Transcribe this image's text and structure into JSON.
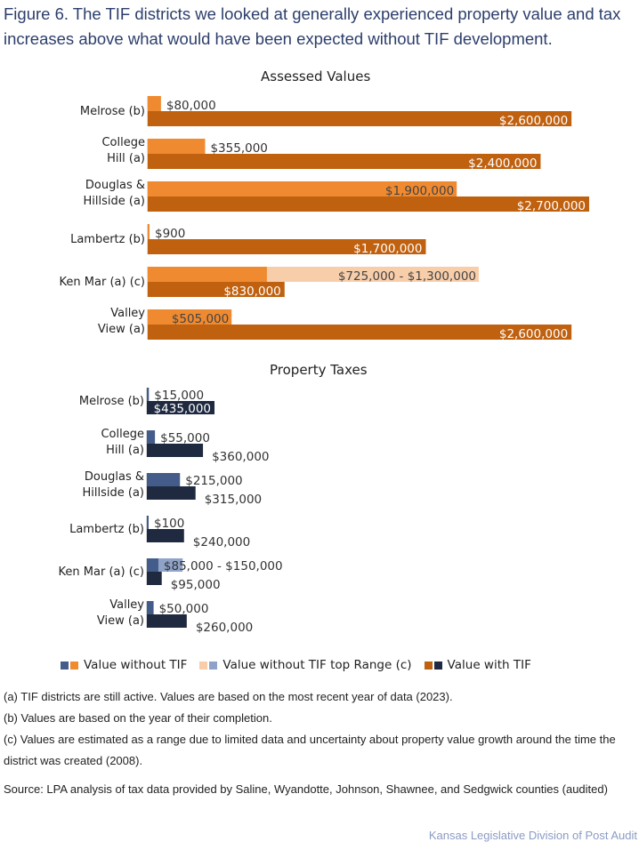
{
  "figure_title": "Figure 6. The TIF districts we looked at generally experienced property value and tax increases above what would have been expected without TIF development.",
  "colors": {
    "assessed_without": "#f08a30",
    "assessed_range": "#f8ceaa",
    "assessed_with": "#c0610f",
    "taxes_without": "#435c8a",
    "taxes_range": "#8fa3c9",
    "taxes_with": "#1f2a40"
  },
  "legend": [
    {
      "label": "Value without TIF",
      "swatches": [
        "#435c8a",
        "#f08a30"
      ]
    },
    {
      "label": "Value without TIF top Range (c)",
      "swatches": [
        "#f8ceaa",
        "#8fa3c9"
      ]
    },
    {
      "label": "Value with TIF",
      "swatches": [
        "#c0610f",
        "#1f2a40"
      ]
    }
  ],
  "chart_data": [
    {
      "type": "bar",
      "orientation": "horizontal",
      "title": "Assessed Values",
      "categories": [
        [
          "Melrose (b)"
        ],
        [
          "College",
          "Hill (a)"
        ],
        [
          "Douglas &",
          "Hillside (a)"
        ],
        [
          "Lambertz (b)"
        ],
        [
          "Ken Mar (a) (c)"
        ],
        [
          "Valley",
          "View (a)"
        ]
      ],
      "series": [
        {
          "name": "Value without TIF",
          "values": [
            80000,
            355000,
            1900000,
            900,
            725000,
            505000
          ],
          "labels": [
            "$80,000",
            "$355,000",
            "$1,900,000",
            "$900",
            "$725,000 - $1,300,000",
            "$505,000"
          ],
          "bar_fraction": [
            0.03,
            0.13,
            0.7,
            0.004,
            0.27,
            0.19
          ]
        },
        {
          "name": "Value without TIF top Range (c)",
          "values": [
            null,
            null,
            null,
            null,
            1300000,
            null
          ],
          "bar_fraction": [
            null,
            null,
            null,
            null,
            0.75,
            null
          ]
        },
        {
          "name": "Value with TIF",
          "values": [
            2600000,
            2400000,
            2700000,
            1700000,
            830000,
            2600000
          ],
          "labels": [
            "$2,600,000",
            "$2,400,000",
            "$2,700,000",
            "$1,700,000",
            "$830,000",
            "$2,600,000"
          ],
          "bar_fraction": [
            0.96,
            0.89,
            1.0,
            0.63,
            0.31,
            0.96
          ]
        }
      ],
      "label_inside": [
        [
          false,
          true
        ],
        [
          false,
          true
        ],
        [
          true,
          true
        ],
        [
          false,
          true
        ],
        [
          true,
          true
        ],
        [
          true,
          true
        ]
      ]
    },
    {
      "type": "bar",
      "orientation": "horizontal",
      "title": "Property Taxes",
      "categories": [
        [
          "Melrose (b)"
        ],
        [
          "College",
          "Hill (a)"
        ],
        [
          "Douglas &",
          "Hillside (a)"
        ],
        [
          "Lambertz (b)"
        ],
        [
          "Ken Mar (a) (c)"
        ],
        [
          "Valley",
          "View (a)"
        ]
      ],
      "series": [
        {
          "name": "Value without TIF",
          "values": [
            15000,
            55000,
            215000,
            100,
            85000,
            50000
          ],
          "labels": [
            "$15,000",
            "$55,000",
            "$215,000",
            "$100",
            "$85,000 - $150,000",
            "$50,000"
          ],
          "bar_fraction": [
            0.03,
            0.12,
            0.49,
            0.01,
            0.17,
            0.1
          ]
        },
        {
          "name": "Value without TIF top Range (c)",
          "values": [
            null,
            null,
            null,
            null,
            150000,
            null
          ],
          "bar_fraction": [
            null,
            null,
            null,
            null,
            0.53,
            null
          ]
        },
        {
          "name": "Value with TIF",
          "values": [
            435000,
            360000,
            315000,
            240000,
            95000,
            260000
          ],
          "labels": [
            "$435,000",
            "$360,000",
            "$315,000",
            "$240,000",
            "$95,000",
            "$260,000"
          ],
          "bar_fraction": [
            1.0,
            0.83,
            0.72,
            0.55,
            0.22,
            0.59
          ]
        }
      ],
      "label_inside": [
        [
          false,
          true
        ],
        [
          false,
          false
        ],
        [
          false,
          false
        ],
        [
          false,
          false
        ],
        [
          false,
          false
        ],
        [
          false,
          false
        ]
      ]
    }
  ],
  "notes": [
    "(a) TIF districts are still active. Values are based on the most recent year of data (2023).",
    "(b) Values are based on the year of their completion.",
    "(c) Values are estimated as a range due to limited data and uncertainty about property value growth around the time the district was created (2008)."
  ],
  "source": "Source: LPA analysis of tax data provided by Saline, Wyandotte, Johnson, Shawnee, and Sedgwick counties (audited)",
  "credit": "Kansas Legislative Division of Post Audit"
}
